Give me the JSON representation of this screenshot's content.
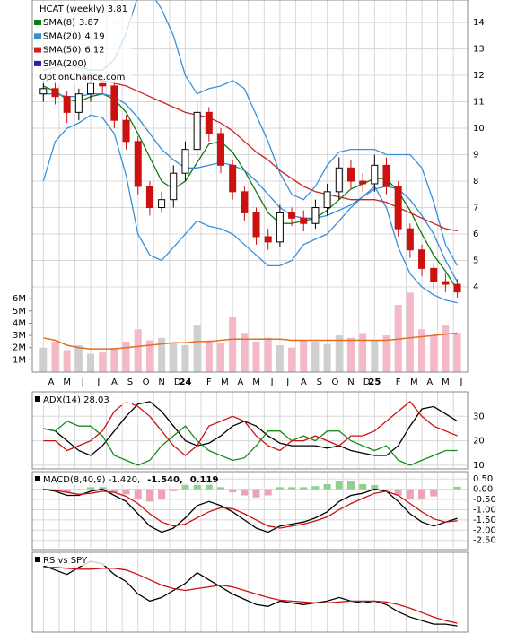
{
  "chart_data": [
    {
      "type": "candlestick",
      "title": "HCAT (weekly) 3.81",
      "watermark": "OptionChance.com",
      "x": [
        0,
        0.75,
        1.5,
        2.25,
        3,
        3.75,
        4.5,
        5.25,
        6,
        6.75,
        7.5,
        8.25,
        9,
        9.75,
        10.5,
        11.25,
        12,
        12.75,
        13.5,
        14.25,
        15,
        15.75,
        16.5,
        17.25,
        18,
        18.75,
        19.5,
        20.25,
        21,
        21.75,
        22.5,
        23.25,
        24,
        24.75,
        25.5,
        26.25
      ],
      "xlim": [
        -0.7,
        26.9
      ],
      "xticks": [
        {
          "value": 0,
          "label": "A"
        },
        {
          "value": 1,
          "label": "M"
        },
        {
          "value": 2,
          "label": "J"
        },
        {
          "value": 3,
          "label": "J"
        },
        {
          "value": 4,
          "label": "A"
        },
        {
          "value": 5,
          "label": "S"
        },
        {
          "value": 6,
          "label": "O"
        },
        {
          "value": 7,
          "label": "N"
        },
        {
          "value": 8,
          "label": "D"
        },
        {
          "value": 9,
          "label": "24"
        },
        {
          "value": 10,
          "label": "F"
        },
        {
          "value": 11,
          "label": "M"
        },
        {
          "value": 12,
          "label": "A"
        },
        {
          "value": 13,
          "label": "M"
        },
        {
          "value": 14,
          "label": "J"
        },
        {
          "value": 15,
          "label": "J"
        },
        {
          "value": 16,
          "label": "A"
        },
        {
          "value": 17,
          "label": "S"
        },
        {
          "value": 18,
          "label": "O"
        },
        {
          "value": 19,
          "label": "N"
        },
        {
          "value": 20,
          "label": "D"
        },
        {
          "value": 21,
          "label": "25"
        },
        {
          "value": 22,
          "label": "F"
        },
        {
          "value": 23,
          "label": "M"
        },
        {
          "value": 24,
          "label": "A"
        },
        {
          "value": 25,
          "label": "M"
        },
        {
          "value": 26,
          "label": "J"
        }
      ],
      "ylim": [
        0.78,
        14.85
      ],
      "yticks": [
        4,
        5,
        6,
        7,
        8,
        9,
        10,
        11,
        12,
        13,
        14
      ],
      "grid": true,
      "open": [
        11.3,
        11.5,
        11.2,
        10.6,
        11.3,
        11.7,
        11.6,
        10.3,
        9.5,
        7.8,
        7.0,
        7.3,
        8.3,
        9.2,
        10.6,
        9.8,
        8.6,
        7.6,
        6.8,
        5.9,
        5.7,
        6.8,
        6.6,
        6.4,
        7.0,
        7.6,
        8.5,
        8.0,
        7.9,
        8.6,
        7.8,
        6.2,
        5.4,
        4.7,
        4.2,
        4.1
      ],
      "high": [
        11.8,
        11.8,
        11.4,
        11.5,
        12.0,
        11.9,
        11.8,
        10.5,
        9.7,
        8.0,
        7.6,
        8.6,
        9.5,
        11.0,
        10.8,
        10.0,
        8.8,
        7.8,
        7.0,
        6.2,
        7.1,
        7.0,
        6.9,
        7.3,
        7.9,
        8.9,
        8.8,
        8.3,
        9.0,
        8.9,
        8.0,
        6.4,
        5.6,
        4.9,
        4.5,
        4.3
      ],
      "low": [
        11.0,
        10.9,
        10.2,
        10.3,
        11.0,
        11.3,
        10.0,
        9.2,
        7.5,
        6.7,
        6.8,
        7.0,
        8.0,
        8.9,
        9.5,
        8.3,
        7.3,
        6.5,
        5.6,
        5.4,
        5.5,
        6.3,
        6.1,
        6.2,
        6.7,
        7.3,
        7.7,
        7.6,
        7.6,
        7.5,
        5.9,
        5.1,
        4.4,
        3.9,
        3.8,
        3.6
      ],
      "close": [
        11.5,
        11.2,
        10.6,
        11.3,
        11.7,
        11.6,
        10.3,
        9.5,
        7.8,
        7.0,
        7.3,
        8.3,
        9.2,
        10.6,
        9.8,
        8.6,
        7.6,
        6.8,
        5.9,
        5.7,
        6.8,
        6.6,
        6.4,
        7.0,
        7.6,
        8.5,
        8.0,
        7.9,
        8.6,
        7.8,
        6.2,
        5.4,
        4.7,
        4.2,
        4.1,
        3.81
      ],
      "up_color": "#000000",
      "down_color": "#cc1111",
      "series": [
        {
          "name": "SMA(8)",
          "last": 3.87,
          "color": "#127a12",
          "values": [
            11.6,
            11.4,
            11.1,
            11.0,
            11.2,
            11.3,
            11.1,
            10.6,
            9.8,
            8.9,
            8.0,
            7.7,
            8.0,
            8.7,
            9.4,
            9.5,
            9.1,
            8.4,
            7.6,
            6.8,
            6.4,
            6.4,
            6.5,
            6.6,
            6.9,
            7.3,
            7.7,
            7.9,
            8.1,
            8.1,
            7.6,
            6.9,
            6.0,
            5.2,
            4.6,
            3.87
          ]
        },
        {
          "name": "SMA(20)",
          "last": 4.19,
          "color": "#2f8fd8",
          "values": [
            11.3,
            11.3,
            11.2,
            11.2,
            11.3,
            11.3,
            11.2,
            10.9,
            10.4,
            9.8,
            9.2,
            8.8,
            8.5,
            8.5,
            8.6,
            8.7,
            8.6,
            8.4,
            8.0,
            7.5,
            7.0,
            6.7,
            6.6,
            6.6,
            6.7,
            6.9,
            7.1,
            7.4,
            7.7,
            7.8,
            7.7,
            7.3,
            6.7,
            6.0,
            5.0,
            4.19
          ]
        },
        {
          "name": "SMA(50)",
          "last": 6.12,
          "color": "#cc2222",
          "values": [
            null,
            null,
            null,
            11.9,
            11.9,
            11.8,
            11.7,
            11.6,
            11.4,
            11.2,
            11.0,
            10.8,
            10.6,
            10.5,
            10.4,
            10.2,
            9.9,
            9.5,
            9.1,
            8.8,
            8.4,
            8.1,
            7.8,
            7.6,
            7.5,
            7.4,
            7.3,
            7.3,
            7.3,
            7.2,
            7.0,
            6.8,
            6.6,
            6.4,
            6.2,
            6.12
          ]
        },
        {
          "name": "SMA(200)",
          "color": "#2222aa",
          "values": [
            null,
            null,
            null,
            null,
            null,
            null,
            null,
            null,
            null,
            null,
            null,
            null,
            null,
            null,
            null,
            null,
            null,
            null,
            null,
            null,
            null,
            null,
            null,
            null,
            null,
            null,
            null,
            null,
            null,
            null,
            null,
            null,
            null,
            null,
            null,
            null
          ]
        }
      ],
      "bands": {
        "color": "#3a90d8",
        "upper": [
          12.2,
          12.3,
          12.4,
          12.3,
          12.2,
          12.2,
          12.6,
          13.6,
          15.0,
          15.2,
          14.5,
          13.5,
          12.0,
          11.3,
          11.5,
          11.6,
          11.8,
          11.5,
          10.5,
          9.5,
          8.3,
          7.5,
          7.3,
          7.8,
          8.6,
          9.1,
          9.2,
          9.2,
          9.2,
          9.0,
          9.0,
          9.0,
          8.5,
          7.2,
          5.6,
          4.8
        ],
        "lower": [
          8.0,
          9.5,
          10.0,
          10.2,
          10.5,
          10.4,
          9.8,
          8.2,
          6.0,
          5.2,
          5.0,
          5.5,
          6.0,
          6.5,
          6.3,
          6.2,
          6.0,
          5.6,
          5.2,
          4.8,
          4.8,
          5.0,
          5.6,
          5.8,
          6.0,
          6.5,
          7.0,
          7.4,
          7.8,
          7.0,
          5.5,
          4.5,
          4.0,
          3.7,
          3.5,
          3.4
        ]
      },
      "volume": {
        "up_color": "#cfcfcf",
        "down_color": "#f4b8c6",
        "average_color": "#e07020",
        "ylim": [
          0,
          6.6
        ],
        "yticks": [
          {
            "value": 1,
            "label": "1M"
          },
          {
            "value": 2,
            "label": "2M"
          },
          {
            "value": 3,
            "label": "3M"
          },
          {
            "value": 4,
            "label": "4M"
          },
          {
            "value": 5,
            "label": "5M"
          },
          {
            "value": 6,
            "label": "6M"
          }
        ],
        "values": [
          2.0,
          2.5,
          1.8,
          2.2,
          1.5,
          1.6,
          2.0,
          2.5,
          3.5,
          2.6,
          2.8,
          2.4,
          2.2,
          3.8,
          2.6,
          2.4,
          4.5,
          3.2,
          2.5,
          2.8,
          2.2,
          2.0,
          2.6,
          2.5,
          2.3,
          3.0,
          2.8,
          3.2,
          2.6,
          3.0,
          5.5,
          6.5,
          3.5,
          3.0,
          3.8,
          3.2
        ],
        "average": [
          2.8,
          2.6,
          2.2,
          2.0,
          1.9,
          1.9,
          1.9,
          2.0,
          2.1,
          2.2,
          2.3,
          2.4,
          2.4,
          2.5,
          2.5,
          2.6,
          2.7,
          2.7,
          2.7,
          2.7,
          2.7,
          2.6,
          2.6,
          2.6,
          2.6,
          2.6,
          2.6,
          2.6,
          2.6,
          2.6,
          2.7,
          2.8,
          2.9,
          3.0,
          3.1,
          3.2
        ]
      }
    },
    {
      "type": "line",
      "title": "ADX(14) 28.03",
      "x": [
        0,
        0.75,
        1.5,
        2.25,
        3,
        3.75,
        4.5,
        5.25,
        6,
        6.75,
        7.5,
        8.25,
        9,
        9.75,
        10.5,
        11.25,
        12,
        12.75,
        13.5,
        14.25,
        15,
        15.75,
        16.5,
        17.25,
        18,
        18.75,
        19.5,
        20.25,
        21,
        21.75,
        22.5,
        23.25,
        24,
        24.75,
        25.5,
        26.25
      ],
      "xlim": [
        -0.7,
        26.9
      ],
      "ylim": [
        8.5,
        40
      ],
      "yticks": [
        10,
        20,
        30
      ],
      "grid": true,
      "series": [
        {
          "color": "#000000",
          "values": [
            25,
            24,
            20,
            16,
            14,
            18,
            24,
            30,
            35,
            36,
            32,
            26,
            20,
            18,
            19,
            22,
            26,
            28,
            26,
            22,
            19,
            18,
            18,
            18,
            17,
            18,
            16,
            15,
            14,
            14,
            18,
            26,
            33,
            34,
            31,
            28.03
          ]
        },
        {
          "color": "#1a8a1a",
          "values": [
            25,
            24,
            28,
            26,
            26,
            22,
            14,
            12,
            10,
            12,
            18,
            22,
            26,
            20,
            16,
            14,
            12,
            13,
            18,
            24,
            24,
            20,
            22,
            20,
            24,
            24,
            20,
            18,
            16,
            18,
            12,
            10,
            12,
            14,
            16,
            16
          ]
        },
        {
          "color": "#cc1111",
          "values": [
            20,
            20,
            16,
            18,
            20,
            24,
            32,
            36,
            34,
            30,
            24,
            18,
            14,
            18,
            26,
            28,
            30,
            28,
            22,
            18,
            16,
            20,
            20,
            22,
            20,
            18,
            22,
            22,
            24,
            28,
            32,
            36,
            30,
            26,
            24,
            22
          ]
        }
      ]
    },
    {
      "type": "line",
      "labels": [
        {
          "text": "MACD(8,40,9) -1.420,",
          "color": "#000000"
        },
        {
          "text": "-1.540,",
          "color": "#cc0000"
        },
        {
          "text": "0.119",
          "color": "#1040c0"
        }
      ],
      "x": [
        0,
        0.75,
        1.5,
        2.25,
        3,
        3.75,
        4.5,
        5.25,
        6,
        6.75,
        7.5,
        8.25,
        9,
        9.75,
        10.5,
        11.25,
        12,
        12.75,
        13.5,
        14.25,
        15,
        15.75,
        16.5,
        17.25,
        18,
        18.75,
        19.5,
        20.25,
        21,
        21.75,
        22.5,
        23.25,
        24,
        24.75,
        25.5,
        26.25
      ],
      "xlim": [
        -0.7,
        26.9
      ],
      "ylim": [
        -2.95,
        0.86
      ],
      "yticks": [
        {
          "value": 0.5,
          "label": "0.50"
        },
        {
          "value": 0,
          "label": "0.00"
        },
        {
          "value": -0.5,
          "label": "-0.50"
        },
        {
          "value": -1,
          "label": "-1.00"
        },
        {
          "value": -1.5,
          "label": "-1.50"
        },
        {
          "value": -2,
          "label": "-2.00"
        },
        {
          "value": -2.5,
          "label": "-2.50"
        }
      ],
      "grid": true,
      "histogram": {
        "up_color": "#8fcf8f",
        "down_color": "#eaa4b6",
        "values": [
          0,
          -0.05,
          -0.15,
          -0.05,
          0.1,
          0.1,
          -0.15,
          -0.25,
          -0.5,
          -0.6,
          -0.5,
          -0.1,
          0.3,
          0.6,
          0.5,
          0.1,
          -0.15,
          -0.3,
          -0.4,
          -0.3,
          0.1,
          0.1,
          0.1,
          0.15,
          0.25,
          0.4,
          0.4,
          0.25,
          0.2,
          0,
          -0.3,
          -0.5,
          -0.5,
          -0.35,
          0,
          0.119
        ]
      },
      "series": [
        {
          "color": "#000000",
          "values": [
            0.0,
            -0.1,
            -0.3,
            -0.3,
            -0.1,
            0.0,
            -0.3,
            -0.6,
            -1.2,
            -1.8,
            -2.1,
            -1.9,
            -1.4,
            -0.8,
            -0.6,
            -0.8,
            -1.1,
            -1.5,
            -1.9,
            -2.1,
            -1.8,
            -1.7,
            -1.6,
            -1.4,
            -1.1,
            -0.6,
            -0.3,
            -0.2,
            0.0,
            -0.1,
            -0.6,
            -1.2,
            -1.6,
            -1.8,
            -1.6,
            -1.42
          ]
        },
        {
          "color": "#cc1111",
          "values": [
            0.0,
            -0.05,
            -0.15,
            -0.25,
            -0.2,
            -0.1,
            -0.15,
            -0.35,
            -0.7,
            -1.2,
            -1.6,
            -1.8,
            -1.7,
            -1.4,
            -1.1,
            -0.9,
            -0.95,
            -1.2,
            -1.5,
            -1.8,
            -1.9,
            -1.8,
            -1.7,
            -1.55,
            -1.35,
            -1.0,
            -0.7,
            -0.45,
            -0.2,
            -0.1,
            -0.3,
            -0.7,
            -1.1,
            -1.45,
            -1.6,
            -1.54
          ]
        }
      ]
    },
    {
      "type": "line",
      "title": "RS vs SPY",
      "x": [
        0,
        0.75,
        1.5,
        2.25,
        3,
        3.75,
        4.5,
        5.25,
        6,
        6.75,
        7.5,
        8.25,
        9,
        9.75,
        10.5,
        11.25,
        12,
        12.75,
        13.5,
        14.25,
        15,
        15.75,
        16.5,
        17.25,
        18,
        18.75,
        19.5,
        20.25,
        21,
        21.75,
        22.5,
        23.25,
        24,
        24.75,
        25.5,
        26.25
      ],
      "xlim": [
        -0.7,
        26.9
      ],
      "ylim": [
        5,
        95
      ],
      "series": [
        {
          "color": "#000000",
          "values": [
            80,
            75,
            70,
            78,
            85,
            82,
            70,
            62,
            48,
            40,
            44,
            52,
            60,
            72,
            64,
            56,
            48,
            42,
            36,
            34,
            40,
            38,
            36,
            38,
            40,
            44,
            40,
            38,
            40,
            36,
            28,
            22,
            18,
            14,
            14,
            12
          ]
        },
        {
          "color": "#cc1111",
          "values": [
            78,
            78,
            77,
            76,
            76,
            77,
            77,
            75,
            70,
            64,
            58,
            54,
            52,
            54,
            56,
            58,
            56,
            52,
            48,
            44,
            41,
            40,
            39,
            38,
            38,
            39,
            40,
            40,
            40,
            39,
            36,
            32,
            27,
            22,
            18,
            15
          ]
        }
      ]
    }
  ]
}
